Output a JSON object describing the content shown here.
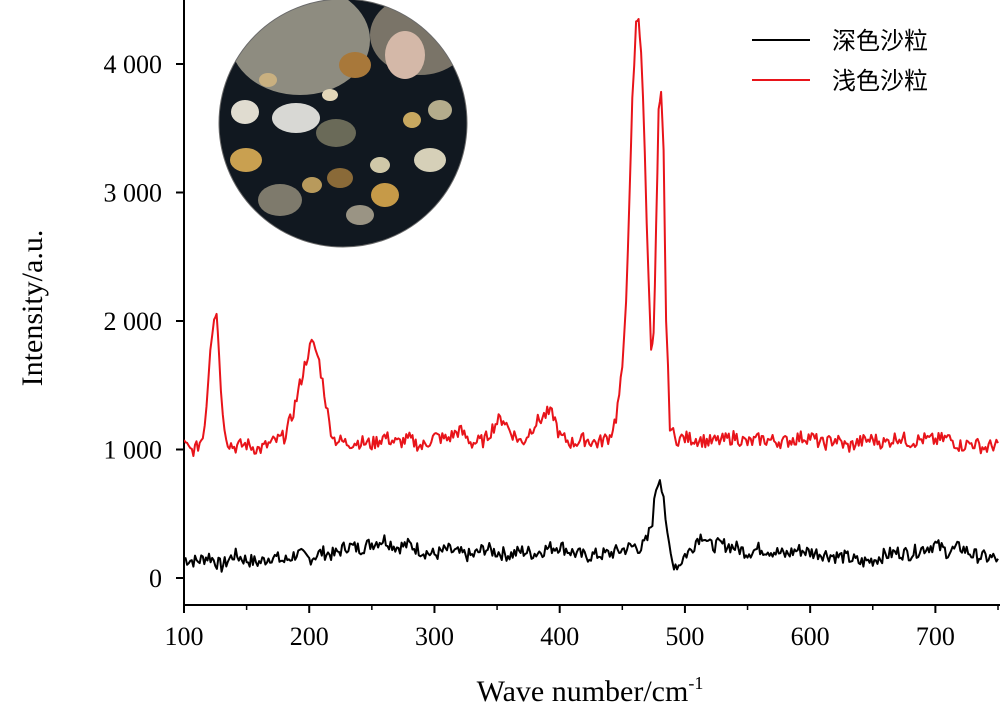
{
  "chart_data": {
    "type": "line",
    "xlabel": "Wave number/cm",
    "xlabel_superscript": "-1",
    "ylabel": "Intensity/a.u.",
    "xlim": [
      100,
      750
    ],
    "ylim": [
      -200,
      4500
    ],
    "x_ticks": [
      100,
      200,
      300,
      400,
      500,
      600,
      700
    ],
    "x_tick_labels": [
      "100",
      "200",
      "300",
      "400",
      "500",
      "600",
      "700"
    ],
    "y_ticks": [
      0,
      1000,
      2000,
      3000,
      4000
    ],
    "y_tick_labels": [
      "0",
      "1 000",
      "2 000",
      "3 000",
      "4 000"
    ],
    "grid": false,
    "legend_position": "top-right",
    "inset": "circular microscope photo of sand grains (top-left)",
    "series": [
      {
        "name": "深色沙粒",
        "color": "#000000",
        "x": [
          100,
          110,
          120,
          130,
          140,
          150,
          160,
          170,
          180,
          190,
          200,
          210,
          220,
          230,
          240,
          250,
          260,
          270,
          280,
          290,
          300,
          310,
          320,
          330,
          340,
          350,
          360,
          370,
          380,
          390,
          400,
          410,
          420,
          430,
          440,
          450,
          460,
          465,
          470,
          474,
          477,
          480,
          483,
          486,
          490,
          495,
          500,
          505,
          510,
          515,
          520,
          530,
          540,
          550,
          560,
          570,
          580,
          590,
          600,
          610,
          620,
          630,
          640,
          650,
          660,
          670,
          680,
          690,
          700,
          710,
          720,
          730,
          740,
          750
        ],
        "values": [
          150,
          130,
          170,
          90,
          180,
          140,
          120,
          170,
          130,
          190,
          150,
          200,
          180,
          250,
          230,
          270,
          300,
          240,
          260,
          210,
          180,
          220,
          190,
          170,
          230,
          200,
          180,
          210,
          190,
          230,
          250,
          200,
          170,
          180,
          190,
          220,
          250,
          230,
          300,
          450,
          700,
          790,
          650,
          300,
          120,
          100,
          180,
          220,
          310,
          340,
          250,
          260,
          240,
          200,
          230,
          210,
          180,
          220,
          200,
          190,
          170,
          160,
          120,
          140,
          180,
          200,
          190,
          230,
          260,
          200,
          240,
          180,
          160,
          150
        ]
      },
      {
        "name": "浅色沙粒",
        "color": "#e8141a",
        "x": [
          100,
          105,
          110,
          115,
          118,
          121,
          124,
          126,
          128,
          131,
          135,
          140,
          150,
          160,
          170,
          180,
          186,
          190,
          195,
          199,
          202,
          205,
          208,
          212,
          216,
          220,
          230,
          240,
          250,
          260,
          270,
          280,
          290,
          300,
          310,
          320,
          330,
          340,
          350,
          355,
          360,
          370,
          380,
          390,
          395,
          400,
          410,
          420,
          430,
          440,
          445,
          450,
          453,
          456,
          458,
          461,
          463,
          465,
          468,
          471,
          473,
          475,
          477,
          479,
          481,
          483,
          485,
          488,
          492,
          500,
          510,
          520,
          530,
          540,
          550,
          560,
          570,
          580,
          590,
          600,
          610,
          620,
          630,
          640,
          650,
          660,
          670,
          680,
          690,
          700,
          710,
          720,
          730,
          740,
          750
        ],
        "values": [
          1040,
          990,
          1010,
          1100,
          1350,
          1800,
          2050,
          2080,
          1750,
          1250,
          1060,
          1020,
          1040,
          1000,
          1050,
          1100,
          1250,
          1400,
          1600,
          1750,
          1820,
          1780,
          1680,
          1450,
          1200,
          1080,
          1050,
          1060,
          1040,
          1100,
          1050,
          1080,
          1020,
          1100,
          1080,
          1150,
          1050,
          1070,
          1220,
          1240,
          1150,
          1050,
          1200,
          1280,
          1270,
          1100,
          1050,
          1080,
          1050,
          1100,
          1250,
          1600,
          2200,
          3000,
          3700,
          4300,
          4380,
          4100,
          3300,
          2300,
          1830,
          1870,
          2700,
          3600,
          3740,
          3300,
          2000,
          1200,
          1080,
          1090,
          1080,
          1060,
          1070,
          1100,
          1050,
          1080,
          1070,
          1060,
          1090,
          1100,
          1040,
          1080,
          1020,
          1060,
          1080,
          1050,
          1100,
          1060,
          1080,
          1070,
          1090,
          1030,
          1050,
          1010,
          1050
        ]
      }
    ]
  }
}
